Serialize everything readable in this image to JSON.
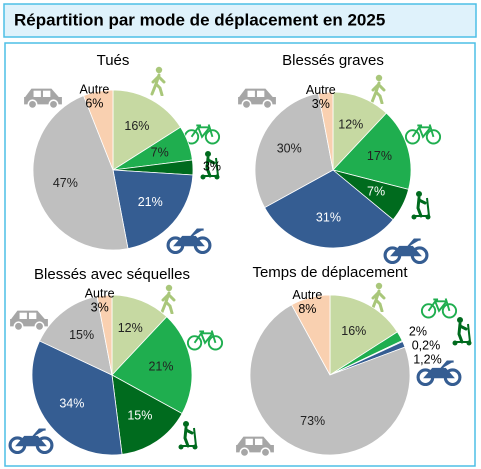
{
  "title": "Répartition par mode de déplacement en 2025",
  "chart_data": [
    {
      "type": "pie",
      "title": "Tués",
      "categories": [
        null,
        null,
        null,
        null,
        null,
        "Autre"
      ],
      "values": [
        16,
        7,
        3,
        21,
        47,
        6
      ],
      "value_labels": [
        "16%",
        "7%",
        "3%",
        "21%",
        "47%",
        "6%"
      ],
      "colors": [
        "#c6d9a2",
        "#1fae4f",
        "#006b1e",
        "#355d92",
        "#bfbfbf",
        "#f9d0b0"
      ]
    },
    {
      "type": "pie",
      "title": "Blessés graves",
      "categories": [
        null,
        null,
        null,
        null,
        null,
        "Autre"
      ],
      "values": [
        12,
        17,
        7,
        31,
        30,
        3
      ],
      "value_labels": [
        "12%",
        "17%",
        "7%",
        "31%",
        "30%",
        "3%"
      ],
      "colors": [
        "#c6d9a2",
        "#1fae4f",
        "#006b1e",
        "#355d92",
        "#bfbfbf",
        "#f9d0b0"
      ]
    },
    {
      "type": "pie",
      "title": "Blessés avec séquelles",
      "categories": [
        null,
        null,
        null,
        null,
        null,
        "Autre"
      ],
      "values": [
        12,
        21,
        15,
        34,
        15,
        3
      ],
      "value_labels": [
        "12%",
        "21%",
        "15%",
        "34%",
        "15%",
        "3%"
      ],
      "colors": [
        "#c6d9a2",
        "#1fae4f",
        "#006b1e",
        "#355d92",
        "#bfbfbf",
        "#f9d0b0"
      ]
    },
    {
      "type": "pie",
      "title": "Temps de déplacement",
      "categories": [
        null,
        null,
        null,
        null,
        null,
        "Autre"
      ],
      "values": [
        16,
        2,
        0.2,
        1.2,
        73,
        8
      ],
      "value_labels": [
        "16%",
        "2%",
        "0,2%",
        "1,2%",
        "73%",
        "8%"
      ],
      "colors": [
        "#c6d9a2",
        "#1fae4f",
        "#006b1e",
        "#355d92",
        "#bfbfbf",
        "#f9d0b0"
      ]
    }
  ]
}
